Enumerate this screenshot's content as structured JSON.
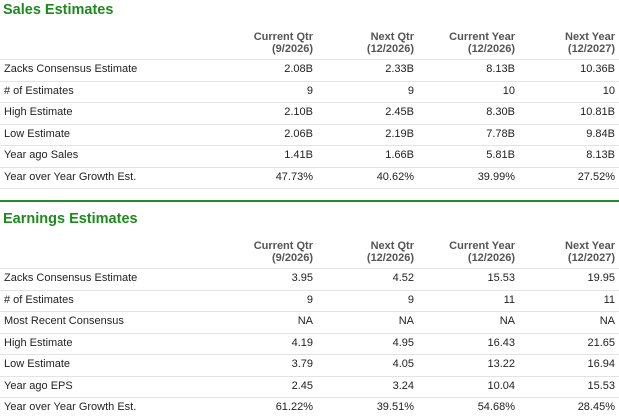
{
  "sections": [
    {
      "title": "Sales Estimates",
      "columns": [
        {
          "name": "Current Qtr",
          "period": "(9/2026)"
        },
        {
          "name": "Next Qtr",
          "period": "(12/2026)"
        },
        {
          "name": "Current Year",
          "period": "(12/2026)"
        },
        {
          "name": "Next Year",
          "period": "(12/2027)"
        }
      ],
      "rows": [
        {
          "label": "Zacks Consensus Estimate",
          "values": [
            "2.08B",
            "2.33B",
            "8.13B",
            "10.36B"
          ]
        },
        {
          "label": "# of Estimates",
          "values": [
            "9",
            "9",
            "10",
            "10"
          ]
        },
        {
          "label": "High Estimate",
          "values": [
            "2.10B",
            "2.45B",
            "8.30B",
            "10.81B"
          ]
        },
        {
          "label": "Low Estimate",
          "values": [
            "2.06B",
            "2.19B",
            "7.78B",
            "9.84B"
          ]
        },
        {
          "label": "Year ago Sales",
          "values": [
            "1.41B",
            "1.66B",
            "5.81B",
            "8.13B"
          ]
        },
        {
          "label": "Year over Year Growth Est.",
          "values": [
            "47.73%",
            "40.62%",
            "39.99%",
            "27.52%"
          ]
        }
      ]
    },
    {
      "title": "Earnings Estimates",
      "columns": [
        {
          "name": "Current Qtr",
          "period": "(9/2026)"
        },
        {
          "name": "Next Qtr",
          "period": "(12/2026)"
        },
        {
          "name": "Current Year",
          "period": "(12/2026)"
        },
        {
          "name": "Next Year",
          "period": "(12/2027)"
        }
      ],
      "rows": [
        {
          "label": "Zacks Consensus Estimate",
          "values": [
            "3.95",
            "4.52",
            "15.53",
            "19.95"
          ]
        },
        {
          "label": "# of Estimates",
          "values": [
            "9",
            "9",
            "11",
            "11"
          ]
        },
        {
          "label": "Most Recent Consensus",
          "values": [
            "NA",
            "NA",
            "NA",
            "NA"
          ]
        },
        {
          "label": "High Estimate",
          "values": [
            "4.19",
            "4.95",
            "16.43",
            "21.65"
          ]
        },
        {
          "label": "Low Estimate",
          "values": [
            "3.79",
            "4.05",
            "13.22",
            "16.94"
          ]
        },
        {
          "label": "Year ago EPS",
          "values": [
            "2.45",
            "3.24",
            "10.04",
            "15.53"
          ]
        },
        {
          "label": "Year over Year Growth Est.",
          "values": [
            "61.22%",
            "39.51%",
            "54.68%",
            "28.45%"
          ]
        }
      ]
    }
  ]
}
